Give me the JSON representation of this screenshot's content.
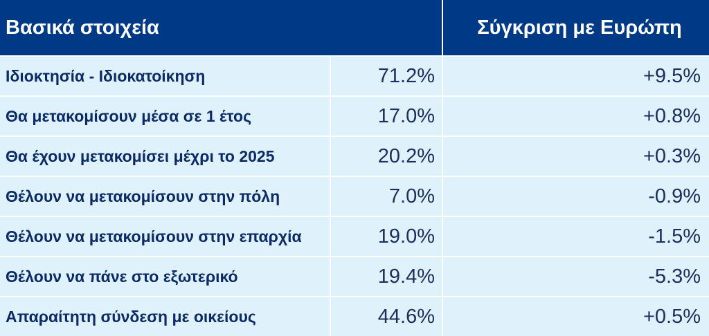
{
  "header": {
    "left_title": "Βασικά στοιχεία",
    "right_title": "Σύγκριση με Ευρώπη"
  },
  "rows": [
    {
      "label": "Ιδιοκτησία - Ιδιοκατοίκηση",
      "value": "71.2%",
      "comparison": "+9.5%"
    },
    {
      "label": "Θα μετακομίσουν μέσα σε 1 έτος",
      "value": "17.0%",
      "comparison": "+0.8%"
    },
    {
      "label": "Θα έχουν μετακομίσει μέχρι το 2025",
      "value": "20.2%",
      "comparison": "+0.3%"
    },
    {
      "label": "Θέλουν να μετακομίσουν στην πόλη",
      "value": "7.0%",
      "comparison": "-0.9%"
    },
    {
      "label": "Θέλουν να μετακομίσουν στην επαρχία",
      "value": "19.0%",
      "comparison": "-1.5%"
    },
    {
      "label": "Θέλουν να πάνε στο εξωτερικό",
      "value": "19.4%",
      "comparison": "-5.3%"
    },
    {
      "label": "Απαραίτητη σύνδεση με οικείους",
      "value": "44.6%",
      "comparison": "+0.5%"
    }
  ],
  "colors": {
    "header_bg": "#003a87",
    "row_bg": "#dff2fb"
  }
}
